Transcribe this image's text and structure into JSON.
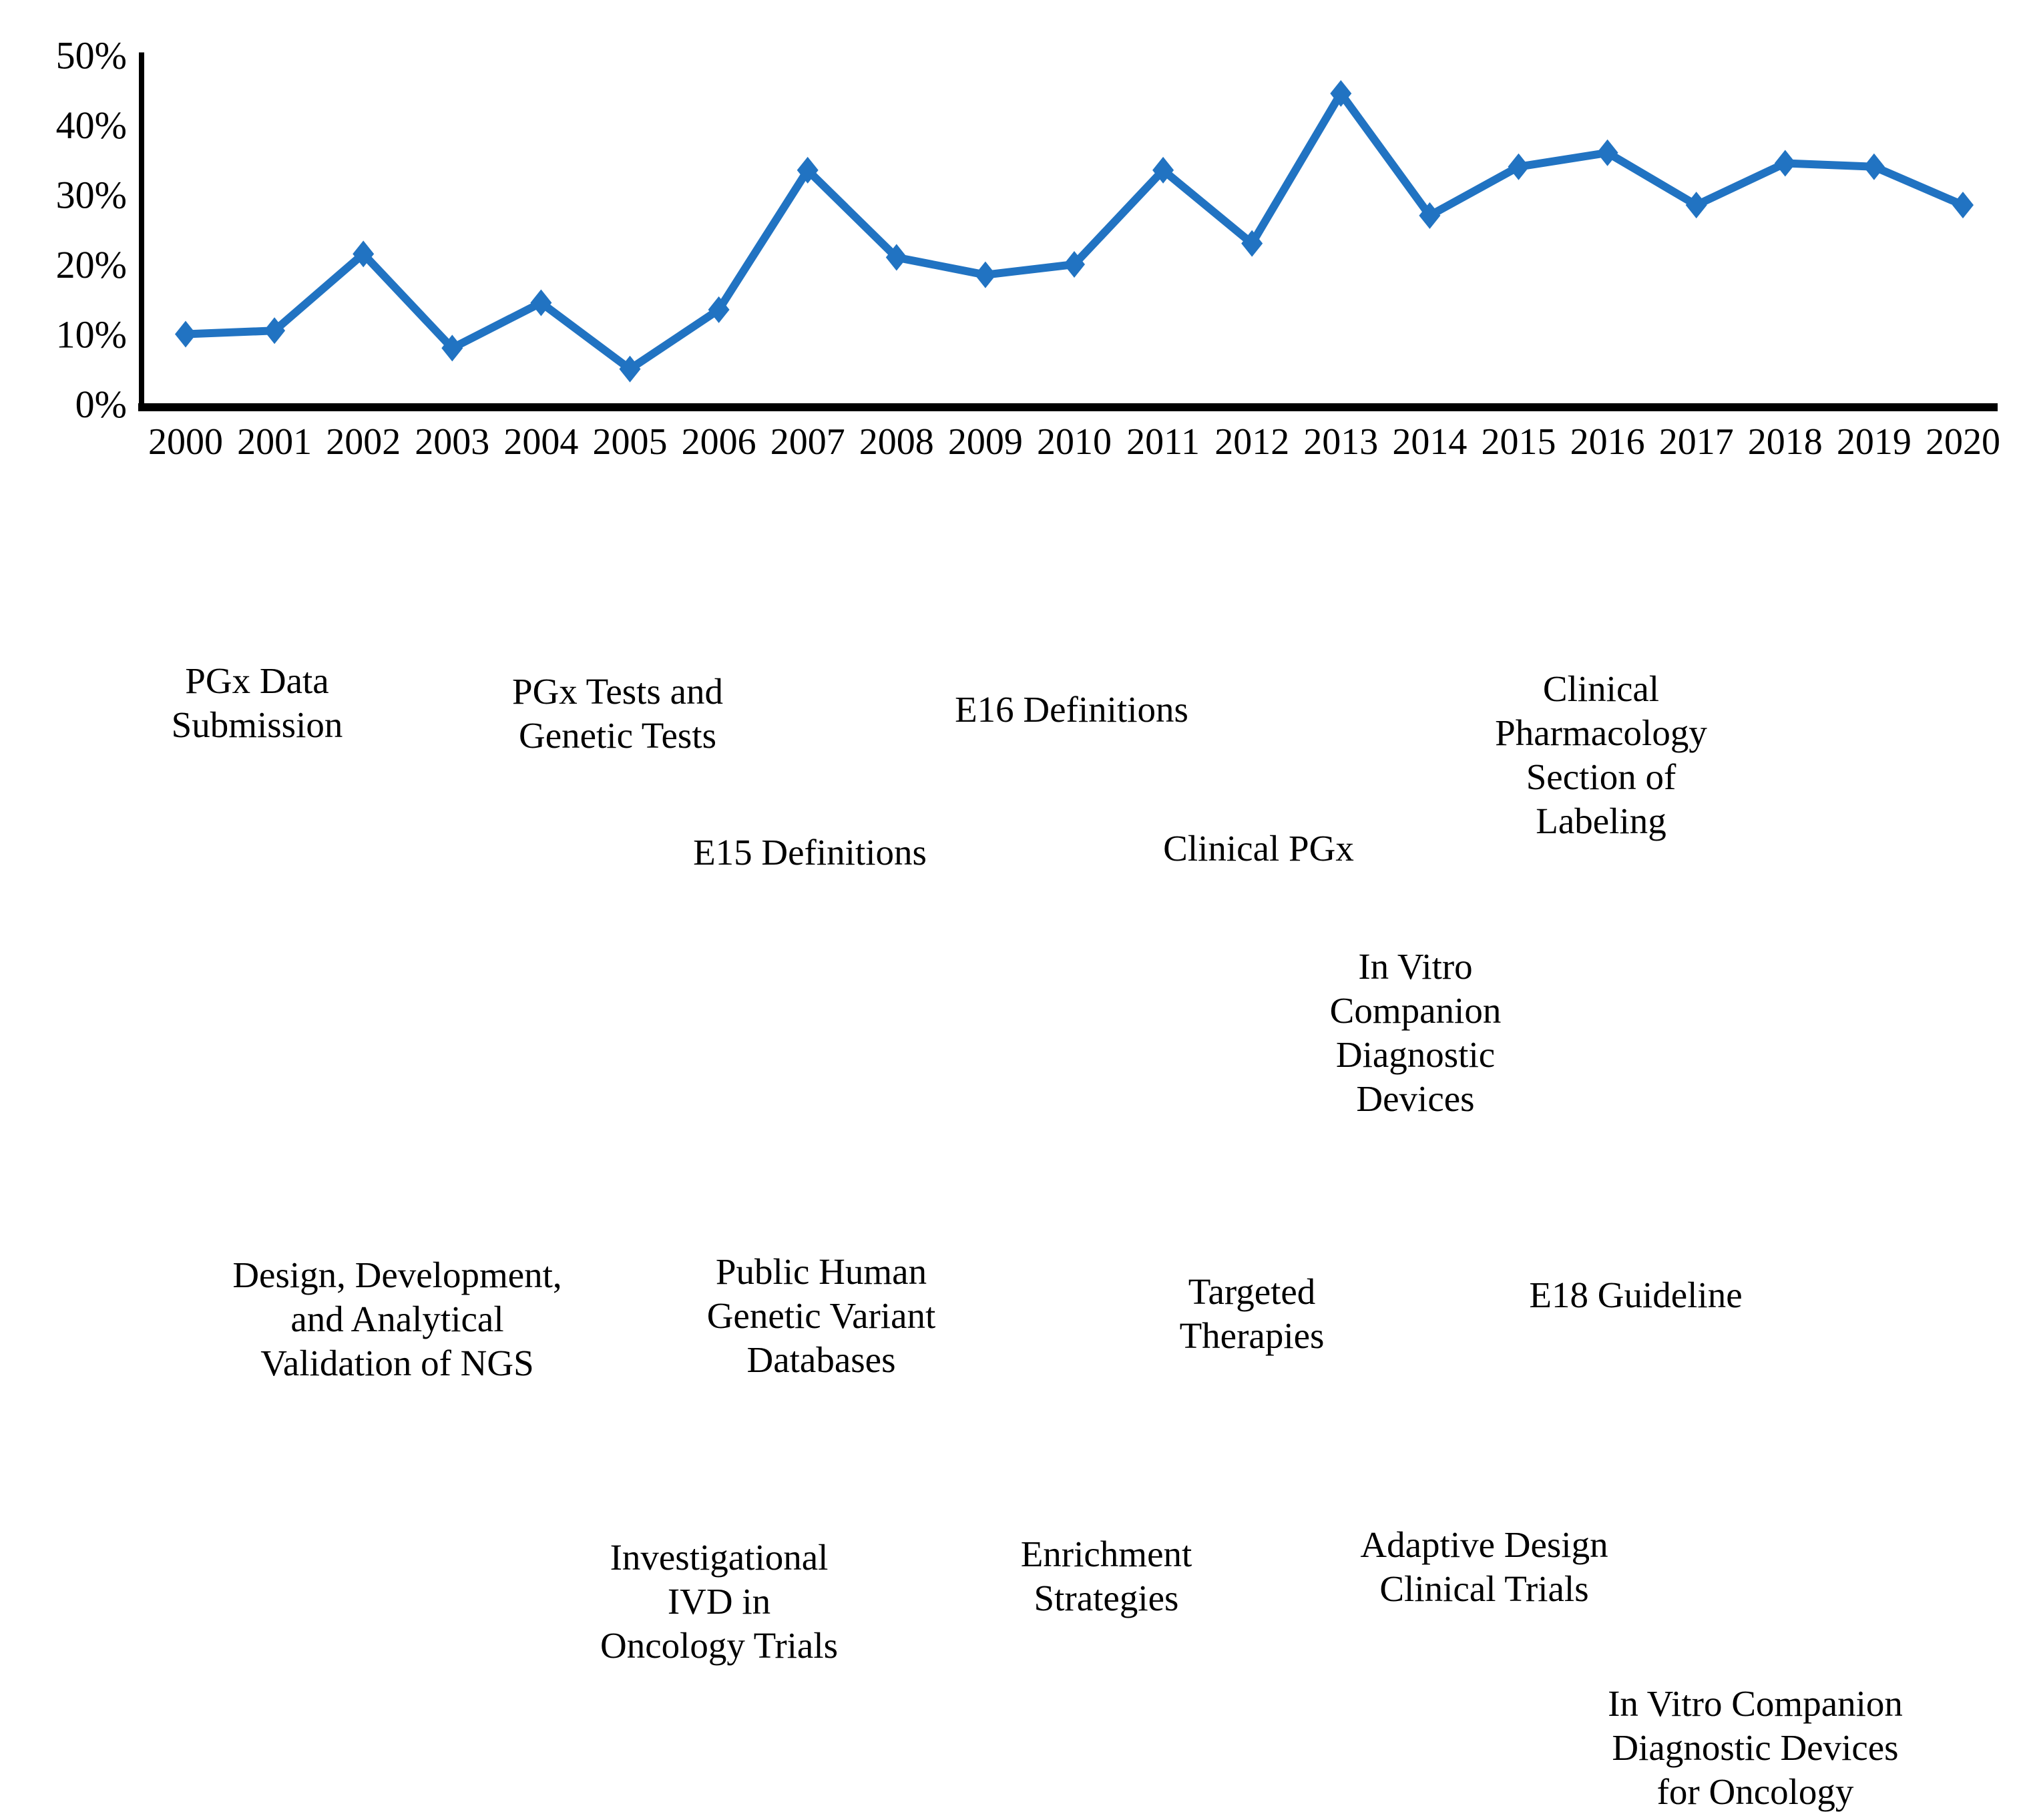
{
  "chart_data": {
    "type": "line",
    "title": "",
    "xlabel": "",
    "ylabel": "",
    "categories": [
      "2000",
      "2001",
      "2002",
      "2003",
      "2004",
      "2005",
      "2006",
      "2007",
      "2008",
      "2009",
      "2010",
      "2011",
      "2012",
      "2013",
      "2014",
      "2015",
      "2016",
      "2017",
      "2018",
      "2019",
      "2020"
    ],
    "series": [
      {
        "name": "percentage-by-year",
        "values": [
          10,
          10.5,
          21.5,
          8,
          14.5,
          5,
          13.5,
          33.5,
          21,
          18.5,
          20,
          33.5,
          23,
          44.5,
          27,
          34,
          36,
          28.5,
          34.5,
          34,
          28.5
        ]
      }
    ],
    "ylim": [
      0,
      50
    ],
    "ytick_step": 10,
    "ytick_labels": [
      "0%",
      "10%",
      "20%",
      "30%",
      "40%",
      "50%"
    ],
    "grid": false,
    "legend": "none",
    "marker": "diamond",
    "line_color": "#2173C2",
    "axis_color": "#000000"
  },
  "annotations": [
    {
      "name": "pgx-data-submission",
      "text": "PGx Data\nSubmission"
    },
    {
      "name": "pgx-tests-and-genetic-tests",
      "text": "PGx Tests and\nGenetic Tests"
    },
    {
      "name": "e16-definitions",
      "text": "E16 Definitions"
    },
    {
      "name": "e15-definitions",
      "text": "E15 Definitions"
    },
    {
      "name": "clinical-pgx",
      "text": "Clinical PGx"
    },
    {
      "name": "clinical-pharmacology-section-of-labeling",
      "text": "Clinical\nPharmacology\nSection of\nLabeling"
    },
    {
      "name": "in-vitro-companion-diagnostic-devices",
      "text": "In Vitro\nCompanion\nDiagnostic\nDevices"
    },
    {
      "name": "design-development-analytical-validation-ngs",
      "text": "Design, Development,\nand Analytical\nValidation of NGS"
    },
    {
      "name": "public-human-genetic-variant-databases",
      "text": "Public Human\nGenetic Variant\nDatabases"
    },
    {
      "name": "targeted-therapies",
      "text": "Targeted\nTherapies"
    },
    {
      "name": "e18-guideline",
      "text": "E18 Guideline"
    },
    {
      "name": "investigational-ivd-in-oncology-trials",
      "text": "Investigational\nIVD in\nOncology Trials"
    },
    {
      "name": "enrichment-strategies",
      "text": "Enrichment\nStrategies"
    },
    {
      "name": "adaptive-design-clinical-trials",
      "text": "Adaptive Design\nClinical Trials"
    },
    {
      "name": "in-vitro-companion-diagnostic-devices-for-oncology",
      "text": "In Vitro Companion\nDiagnostic Devices\nfor Oncology"
    }
  ]
}
